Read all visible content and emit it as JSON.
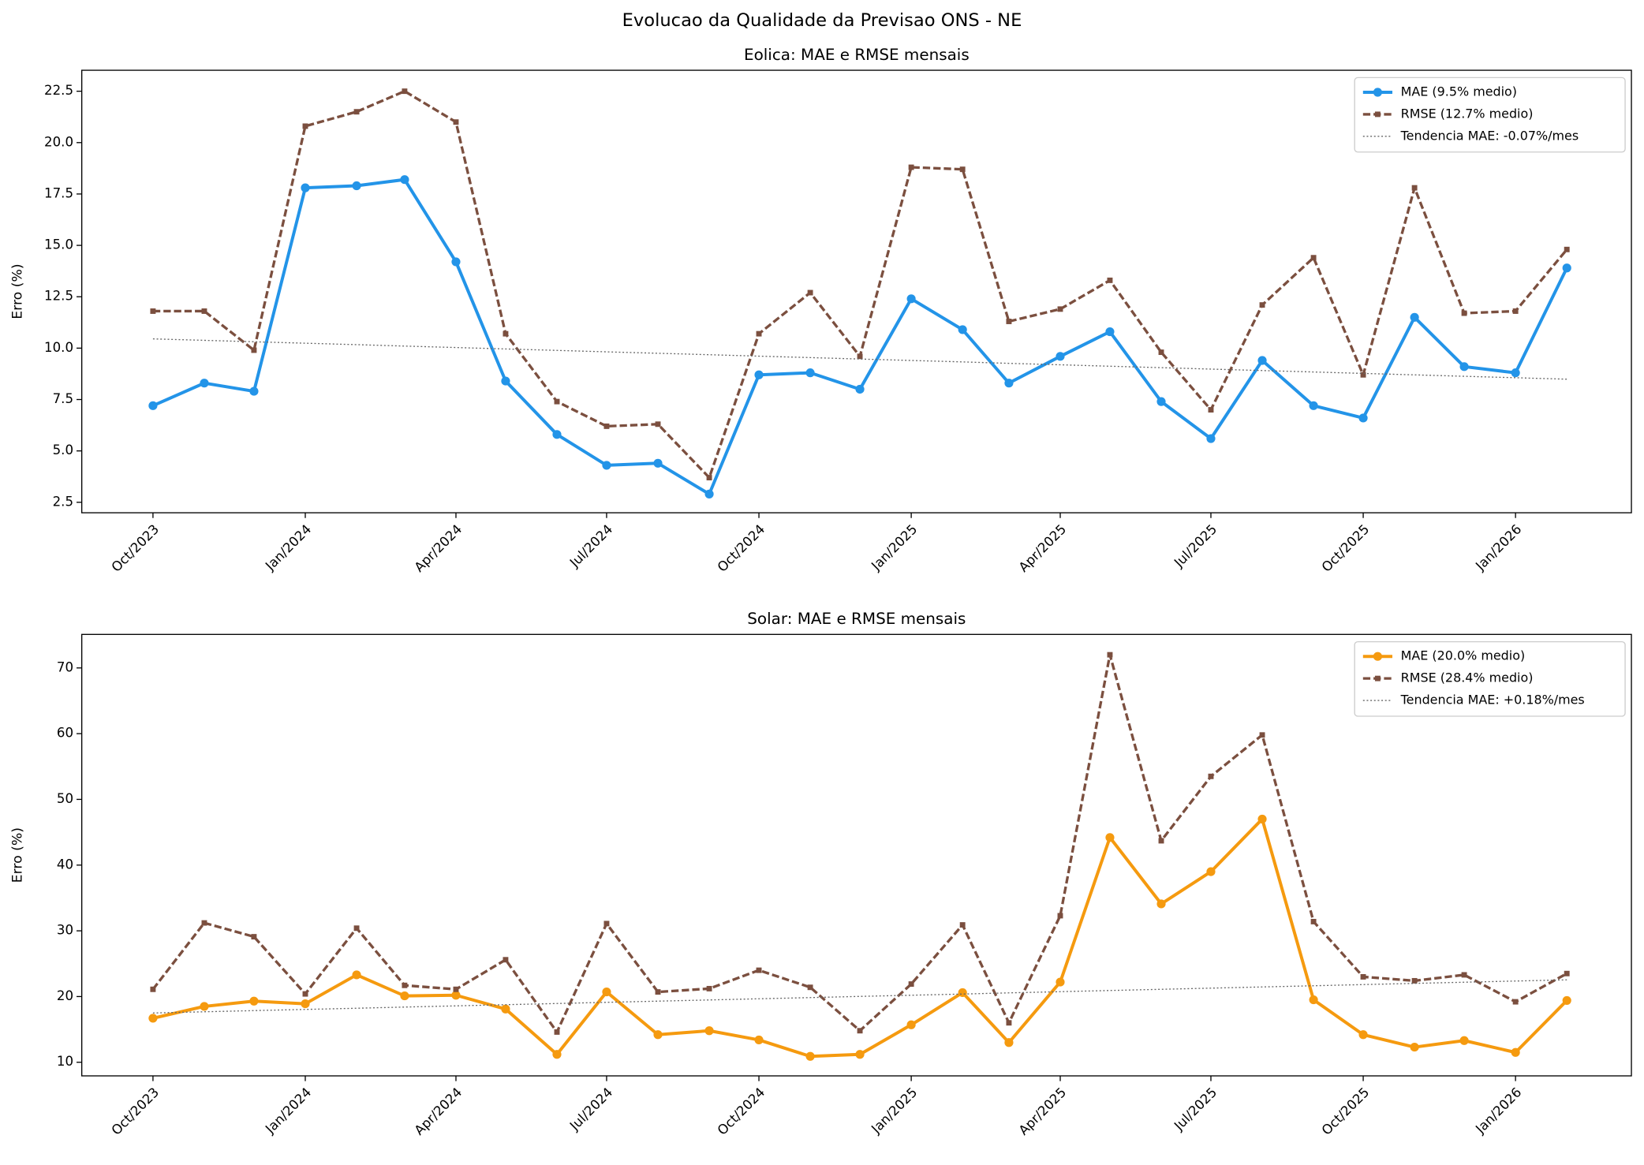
{
  "title": "Evolucao da Qualidade da Previsao ONS - NE",
  "chart_data": [
    {
      "type": "line",
      "title": "Eolica: MAE e RMSE mensais",
      "ylabel": "Erro (%)",
      "x": [
        "2023-10",
        "2023-11",
        "2023-12",
        "2024-01",
        "2024-02",
        "2024-03",
        "2024-04",
        "2024-05",
        "2024-06",
        "2024-07",
        "2024-08",
        "2024-09",
        "2024-10",
        "2024-11",
        "2024-12",
        "2025-01",
        "2025-02",
        "2025-03",
        "2025-04",
        "2025-05",
        "2025-06",
        "2025-07",
        "2025-08",
        "2025-09",
        "2025-10",
        "2025-11",
        "2025-12",
        "2026-01",
        "2026-02"
      ],
      "xlim": [
        "2023-08-19",
        "2026-03-12"
      ],
      "xticks": [
        {
          "value": "2023-10",
          "label": "Oct/2023"
        },
        {
          "value": "2024-01",
          "label": "Jan/2024"
        },
        {
          "value": "2024-04",
          "label": "Apr/2024"
        },
        {
          "value": "2024-07",
          "label": "Jul/2024"
        },
        {
          "value": "2024-10",
          "label": "Oct/2024"
        },
        {
          "value": "2025-01",
          "label": "Jan/2025"
        },
        {
          "value": "2025-04",
          "label": "Apr/2025"
        },
        {
          "value": "2025-07",
          "label": "Jul/2025"
        },
        {
          "value": "2025-10",
          "label": "Oct/2025"
        },
        {
          "value": "2026-01",
          "label": "Jan/2026"
        }
      ],
      "ylim": [
        1.99,
        23.52
      ],
      "yticks": [
        2.5,
        {
          "value": 5,
          "label": "5.0"
        },
        7.5,
        {
          "value": 10,
          "label": "10.0"
        },
        12.5,
        {
          "value": 15,
          "label": "15.0"
        },
        17.5,
        {
          "value": 20,
          "label": "20.0"
        },
        22.5
      ],
      "legend": "upper right",
      "series": [
        {
          "name": "MAE (9.5% medio)",
          "color": "#2394e8",
          "linestyle": "solid",
          "marker": "o",
          "values": [
            7.2,
            8.3,
            7.9,
            17.8,
            17.9,
            18.2,
            14.2,
            8.4,
            5.8,
            4.3,
            4.4,
            2.9,
            8.7,
            8.8,
            8.0,
            12.4,
            10.9,
            8.3,
            9.6,
            10.8,
            7.4,
            5.6,
            9.4,
            7.2,
            6.6,
            11.5,
            9.1,
            8.8,
            13.9
          ]
        },
        {
          "name": "RMSE (12.7% medio)",
          "color": "#7b4f3f",
          "linestyle": "dashed",
          "marker": "s",
          "values": [
            11.8,
            11.8,
            9.9,
            20.8,
            21.5,
            22.5,
            21.0,
            10.7,
            7.4,
            6.2,
            6.3,
            3.7,
            10.7,
            12.7,
            9.6,
            18.8,
            18.7,
            11.3,
            11.9,
            13.3,
            9.8,
            7.0,
            12.1,
            14.4,
            8.7,
            17.8,
            11.7,
            11.8,
            14.8
          ]
        },
        {
          "name": "Tendencia MAE: -0.07%/mes",
          "color": "#666666",
          "linestyle": "dotted",
          "marker": null,
          "values": [
            10.45,
            10.38,
            10.31,
            10.24,
            10.17,
            10.1,
            10.03,
            9.96,
            9.89,
            9.82,
            9.75,
            9.68,
            9.61,
            9.54,
            9.47,
            9.4,
            9.33,
            9.26,
            9.19,
            9.12,
            9.05,
            8.98,
            8.91,
            8.84,
            8.77,
            8.7,
            8.63,
            8.56,
            8.49
          ]
        }
      ]
    },
    {
      "type": "line",
      "title": "Solar: MAE e RMSE mensais",
      "ylabel": "Erro (%)",
      "x": [
        "2023-10",
        "2023-11",
        "2023-12",
        "2024-01",
        "2024-02",
        "2024-03",
        "2024-04",
        "2024-05",
        "2024-06",
        "2024-07",
        "2024-08",
        "2024-09",
        "2024-10",
        "2024-11",
        "2024-12",
        "2025-01",
        "2025-02",
        "2025-03",
        "2025-04",
        "2025-05",
        "2025-06",
        "2025-07",
        "2025-08",
        "2025-09",
        "2025-10",
        "2025-11",
        "2025-12",
        "2026-01",
        "2026-02"
      ],
      "xlim": [
        "2023-08-19",
        "2026-03-12"
      ],
      "xticks": [
        {
          "value": "2023-10",
          "label": "Oct/2023"
        },
        {
          "value": "2024-01",
          "label": "Jan/2024"
        },
        {
          "value": "2024-04",
          "label": "Apr/2024"
        },
        {
          "value": "2024-07",
          "label": "Jul/2024"
        },
        {
          "value": "2024-10",
          "label": "Oct/2024"
        },
        {
          "value": "2025-01",
          "label": "Jan/2025"
        },
        {
          "value": "2025-04",
          "label": "Apr/2025"
        },
        {
          "value": "2025-07",
          "label": "Jul/2025"
        },
        {
          "value": "2025-10",
          "label": "Oct/2025"
        },
        {
          "value": "2026-01",
          "label": "Jan/2026"
        }
      ],
      "ylim": [
        7.93,
        75.1
      ],
      "yticks": [
        10,
        20,
        30,
        40,
        50,
        60,
        70
      ],
      "legend": "upper right",
      "series": [
        {
          "name": "MAE (20.0% medio)",
          "color": "#f59a0f",
          "linestyle": "solid",
          "marker": "o",
          "values": [
            16.7,
            18.5,
            19.3,
            18.9,
            23.3,
            20.1,
            20.2,
            18.1,
            11.2,
            20.7,
            14.2,
            14.8,
            13.4,
            10.9,
            11.2,
            15.7,
            20.6,
            13.0,
            22.2,
            44.2,
            34.1,
            39.0,
            47.0,
            19.5,
            14.2,
            12.3,
            13.3,
            11.5,
            19.4
          ]
        },
        {
          "name": "RMSE (28.4% medio)",
          "color": "#7b4f3f",
          "linestyle": "dashed",
          "marker": "s",
          "values": [
            21.1,
            31.2,
            29.1,
            20.4,
            30.4,
            21.7,
            21.1,
            25.6,
            14.6,
            31.1,
            20.7,
            21.2,
            24.0,
            21.4,
            14.8,
            21.9,
            30.9,
            16.0,
            32.3,
            72.0,
            43.7,
            53.5,
            59.8,
            31.4,
            23.0,
            22.4,
            23.3,
            19.2,
            23.5
          ]
        },
        {
          "name": "Tendencia MAE: +0.18%/mes",
          "color": "#666666",
          "linestyle": "dotted",
          "marker": null,
          "values": [
            17.5,
            17.68,
            17.86,
            18.04,
            18.22,
            18.4,
            18.58,
            18.76,
            18.94,
            19.12,
            19.3,
            19.48,
            19.66,
            19.84,
            20.02,
            20.2,
            20.38,
            20.56,
            20.74,
            20.92,
            21.1,
            21.28,
            21.46,
            21.64,
            21.82,
            22.0,
            22.18,
            22.36,
            22.54
          ]
        }
      ]
    }
  ]
}
